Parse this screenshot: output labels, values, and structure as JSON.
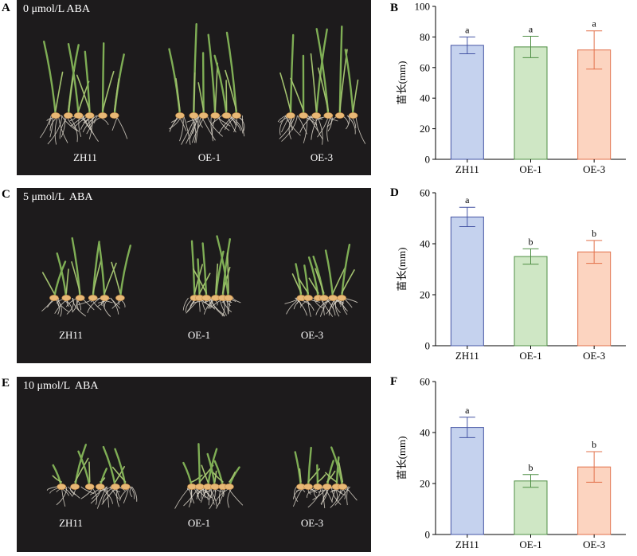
{
  "colors": {
    "background": "#1d1b1c",
    "ZH11": {
      "fill": "#c5d2ee",
      "stroke": "#4454a4"
    },
    "OE-1": {
      "fill": "#cfe7c5",
      "stroke": "#4f8f45"
    },
    "OE-3": {
      "fill": "#fcd4c0",
      "stroke": "#e2704a"
    }
  },
  "panels": [
    {
      "photo_letter": "A",
      "condition": "0 μmol/L ABA",
      "genotypes": [
        "ZH11",
        "OE-1",
        "OE-3"
      ],
      "growth": "full"
    },
    {
      "photo_letter": "C",
      "condition": "5 μmol/L  ABA",
      "genotypes": [
        "ZH11",
        "OE-1",
        "OE-3"
      ],
      "growth": "medium"
    },
    {
      "photo_letter": "E",
      "condition": "10 μmol/L  ABA",
      "genotypes": [
        "ZH11",
        "OE-1",
        "OE-3"
      ],
      "growth": "short"
    }
  ],
  "chart_data": [
    {
      "letter": "B",
      "type": "bar",
      "categories": [
        "ZH11",
        "OE-1",
        "OE-3"
      ],
      "values": [
        74.5,
        73.5,
        71.5
      ],
      "errors": [
        5.5,
        7,
        12.5
      ],
      "sig": [
        "a",
        "a",
        "a"
      ],
      "ylabel": "苗长(mm)",
      "ylim": [
        0,
        100
      ],
      "yticks": [
        0,
        20,
        40,
        60,
        80,
        100
      ]
    },
    {
      "letter": "D",
      "type": "bar",
      "categories": [
        "ZH11",
        "OE-1",
        "OE-3"
      ],
      "values": [
        50.5,
        35,
        36.8
      ],
      "errors": [
        3.8,
        3,
        4.5
      ],
      "sig": [
        "a",
        "b",
        "b"
      ],
      "ylabel": "苗长(mm)",
      "ylim": [
        0,
        60
      ],
      "yticks": [
        0,
        20,
        40,
        60
      ]
    },
    {
      "letter": "F",
      "type": "bar",
      "categories": [
        "ZH11",
        "OE-1",
        "OE-3"
      ],
      "values": [
        42,
        21,
        26.5
      ],
      "errors": [
        4,
        2.5,
        6
      ],
      "sig": [
        "a",
        "b",
        "b"
      ],
      "ylabel": "苗长(mm)",
      "ylim": [
        0,
        60
      ],
      "yticks": [
        0,
        20,
        40,
        60
      ]
    }
  ]
}
